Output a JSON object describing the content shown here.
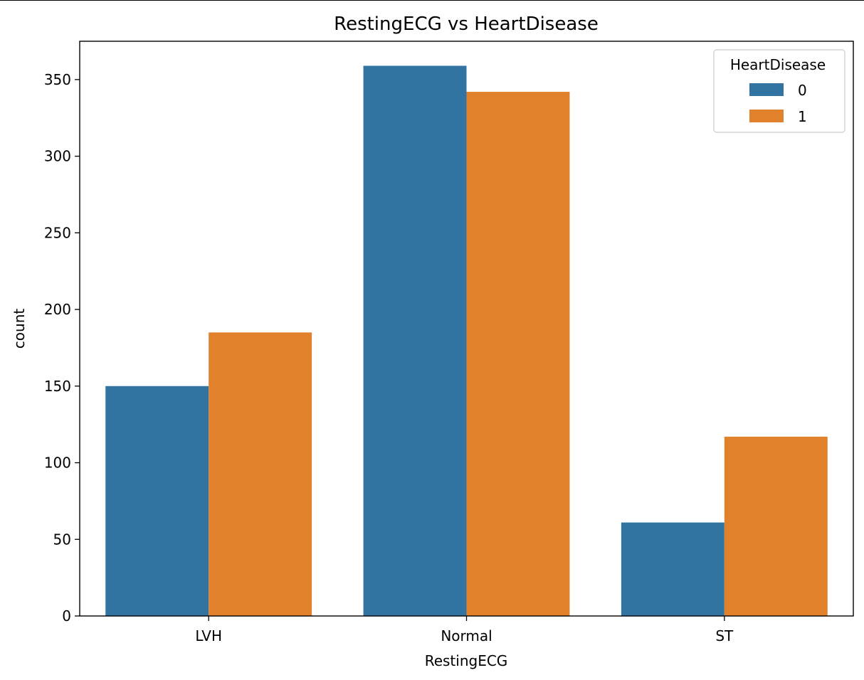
{
  "chart_data": {
    "type": "bar",
    "title": "RestingECG vs HeartDisease",
    "xlabel": "RestingECG",
    "ylabel": "count",
    "categories": [
      "LVH",
      "Normal",
      "ST"
    ],
    "series": [
      {
        "name": "0",
        "values": [
          150,
          359,
          61
        ],
        "color": "#3274a1"
      },
      {
        "name": "1",
        "values": [
          185,
          342,
          117
        ],
        "color": "#e1812c"
      }
    ],
    "ylim": [
      0,
      375
    ],
    "yticks": [
      0,
      50,
      100,
      150,
      200,
      250,
      300,
      350
    ],
    "legend": {
      "title": "HeartDisease",
      "position": "top-right"
    },
    "grid": false
  }
}
